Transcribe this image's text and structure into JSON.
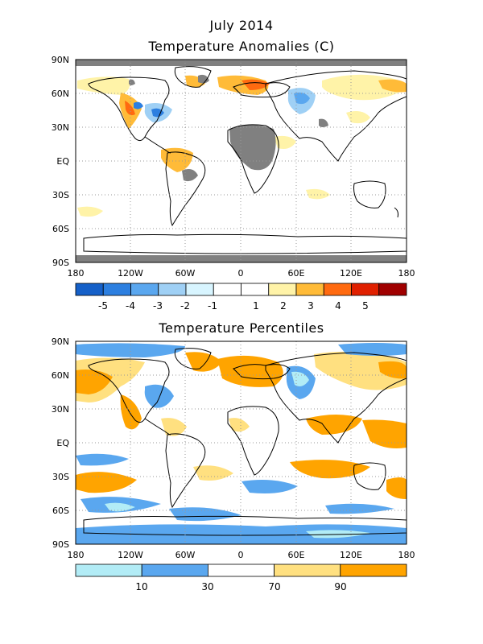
{
  "header": {
    "date": "July 2014"
  },
  "anomaly_map": {
    "title": "Temperature Anomalies (C)",
    "lat_labels": [
      "90N",
      "60N",
      "30N",
      "EQ",
      "30S",
      "60S",
      "90S"
    ],
    "lon_labels": [
      "180",
      "120W",
      "60W",
      "0",
      "60E",
      "120E",
      "180"
    ],
    "legend": {
      "colors": [
        "#1560c8",
        "#2c7fe0",
        "#5aa7ef",
        "#9fd0f5",
        "#d8f5ff",
        "#ffffff",
        "#ffffff",
        "#fff3a8",
        "#ffbb38",
        "#ff6a10",
        "#e02000",
        "#a00000"
      ],
      "labels": [
        "-5",
        "-4",
        "-3",
        "-2",
        "-1",
        "1",
        "2",
        "3",
        "4",
        "5"
      ]
    }
  },
  "percentile_map": {
    "title": "Temperature Percentiles",
    "lat_labels": [
      "90N",
      "60N",
      "30N",
      "EQ",
      "30S",
      "60S",
      "90S"
    ],
    "lon_labels": [
      "180",
      "120W",
      "60W",
      "0",
      "60E",
      "120E",
      "180"
    ],
    "legend": {
      "colors": [
        "#b2ecf6",
        "#5aa7ef",
        "#ffffff",
        "#ffe080",
        "#ffa400"
      ],
      "labels": [
        "10",
        "30",
        "70",
        "90"
      ]
    }
  },
  "colors": {
    "no_data": "#808080",
    "anom_warm_light": "#fff3a8",
    "anom_warm_mid": "#ffbb38",
    "anom_warm_high": "#ff6a10",
    "anom_cool_light": "#d8f5ff",
    "anom_cool_mid": "#9fd0f5",
    "anom_cool_high": "#2c7fe0",
    "pct_warm_light": "#ffe080",
    "pct_warm": "#ffa400",
    "pct_cool_light": "#b2ecf6",
    "pct_cool": "#5aa7ef"
  }
}
